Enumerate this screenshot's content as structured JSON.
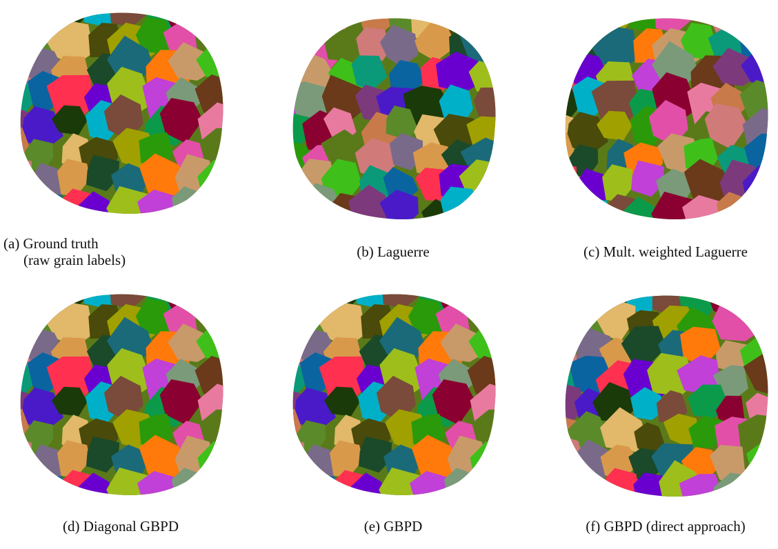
{
  "panels": [
    {
      "caption": [
        "(a) Ground truth",
        "(raw grain labels)"
      ]
    },
    {
      "caption": [
        "(b) Laguerre"
      ]
    },
    {
      "caption": [
        "(c) Mult. weighted Laguerre"
      ]
    },
    {
      "caption": [
        "(d) Diagonal GBPD"
      ]
    },
    {
      "caption": [
        "(e) GBPD"
      ]
    },
    {
      "caption": [
        "(f) GBPD (direct approach)"
      ]
    }
  ]
}
